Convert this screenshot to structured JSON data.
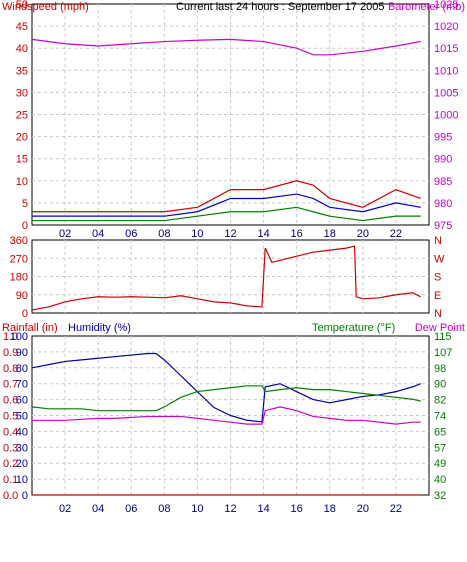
{
  "header": {
    "title": "Current last 24 hours : September 17 2005",
    "wind_label": "Windspeed (mph)",
    "baro_label": "Barometer (mb)"
  },
  "colors": {
    "wind": "#cc0000",
    "gust": "#0000cc",
    "green": "#008000",
    "baro": "#cc00cc",
    "dir": "#cc0000",
    "humidity": "#0000aa",
    "rain": "#cc0000",
    "temperature": "#008000",
    "dewpoint": "#cc00cc",
    "grid": "#c8c8c8"
  },
  "x_axis": {
    "ticks": [
      "02",
      "04",
      "06",
      "08",
      "10",
      "12",
      "14",
      "16",
      "18",
      "20",
      "22"
    ]
  },
  "chart_data": [
    {
      "type": "line",
      "id": "wind_baro",
      "title": "Current last 24 hours : September 17 2005",
      "ylabel_left": "Windspeed (mph)",
      "ylabel_right": "Barometer (mb)",
      "yticks_left": [
        "0",
        "5",
        "10",
        "15",
        "20",
        "25",
        "30",
        "35",
        "40",
        "45",
        "50"
      ],
      "yticks_right": [
        "975",
        "980",
        "985",
        "990",
        "995",
        "1000",
        "1005",
        "1010",
        "1015",
        "1020",
        "1025"
      ],
      "ylim_left": [
        0,
        50
      ],
      "ylim_right": [
        975,
        1025
      ],
      "x": [
        0,
        2,
        4,
        6,
        8,
        10,
        12,
        14,
        16,
        17,
        18,
        20,
        22,
        23.5
      ],
      "series": [
        {
          "name": "Barometer (mb)",
          "axis": "right",
          "values": [
            1017,
            1016,
            1015.5,
            1016,
            1016.5,
            1016.8,
            1017,
            1016.5,
            1015,
            1013.5,
            1013.5,
            1014.3,
            1015.5,
            1016.5
          ]
        },
        {
          "name": "Windspeed (mph)",
          "axis": "left",
          "values": [
            3,
            3,
            3,
            3,
            3,
            4,
            8,
            8,
            10,
            9,
            6,
            4,
            8,
            6
          ]
        },
        {
          "name": "",
          "axis": "left",
          "values": [
            2,
            2,
            2,
            2,
            2,
            3,
            6,
            6,
            7,
            6,
            4,
            3,
            5,
            4
          ]
        },
        {
          "name": "",
          "axis": "left",
          "values": [
            1,
            1,
            1,
            1,
            1,
            2,
            3,
            3,
            4,
            3,
            2,
            1,
            2,
            2
          ]
        }
      ]
    },
    {
      "type": "line",
      "id": "wind_direction",
      "yticks_left": [
        "0",
        "90",
        "180",
        "270",
        "360"
      ],
      "yticks_right": [
        "N",
        "E",
        "S",
        "W",
        "N"
      ],
      "ylim": [
        0,
        360
      ],
      "x": [
        0,
        1,
        2,
        3,
        4,
        5,
        6,
        7,
        8,
        9,
        10,
        11,
        12,
        13,
        13.9,
        14.1,
        14.5,
        15,
        16,
        17,
        18,
        19,
        19.5,
        19.6,
        20,
        21,
        22,
        23,
        23.5
      ],
      "series": [
        {
          "name": "",
          "values": [
            15,
            30,
            55,
            70,
            80,
            78,
            80,
            78,
            75,
            85,
            70,
            55,
            50,
            35,
            30,
            320,
            250,
            260,
            280,
            300,
            310,
            320,
            330,
            80,
            70,
            75,
            90,
            100,
            80
          ]
        }
      ]
    },
    {
      "type": "line",
      "id": "rain_humidity_temp",
      "ylabel_left": "Rainfall (in)",
      "ylabel_mid": "Humidity (%)",
      "ylabel_right": "Temperature (°F)",
      "ylabel_right2": "Dew Point",
      "yticks_left": [
        "0.0",
        "0.1",
        "0.2",
        "0.3",
        "0.4",
        "0.5",
        "0.6",
        "0.7",
        "0.8",
        "0.9",
        "1.0"
      ],
      "yticks_mid": [
        "0",
        "10",
        "20",
        "30",
        "40",
        "50",
        "60",
        "70",
        "80",
        "90",
        "100"
      ],
      "yticks_right": [
        "32",
        "40",
        "49",
        "57",
        "65",
        "74",
        "82",
        "90",
        "98",
        "107",
        "115"
      ],
      "ylim_left": [
        0,
        1
      ],
      "ylim_mid": [
        0,
        100
      ],
      "ylim_right": [
        32,
        115
      ],
      "x": [
        0,
        1,
        2,
        3,
        4,
        5,
        6,
        7,
        7.5,
        8,
        9,
        10,
        11,
        12,
        13,
        13.9,
        14.1,
        15,
        16,
        17,
        18,
        19,
        20,
        21,
        22,
        23,
        23.5
      ],
      "series": [
        {
          "name": "Rainfall (in)",
          "axis": "left",
          "values": [
            0,
            0,
            0,
            0,
            0,
            0,
            0,
            0,
            0,
            0,
            0,
            0,
            0,
            0,
            0,
            0,
            0,
            0,
            0,
            0,
            0,
            0,
            0,
            0,
            0,
            0,
            0
          ]
        },
        {
          "name": "Humidity (%)",
          "axis": "mid",
          "values": [
            80,
            82,
            84,
            85,
            86,
            87,
            88,
            89,
            89,
            85,
            75,
            65,
            55,
            50,
            47,
            46,
            68,
            70,
            65,
            60,
            58,
            60,
            62,
            63,
            65,
            68,
            70
          ]
        },
        {
          "name": "Temperature (°F)",
          "axis": "right",
          "values": [
            78,
            77,
            77,
            77,
            76,
            76,
            76,
            76,
            76,
            78,
            83,
            86,
            87,
            88,
            89,
            89,
            86,
            87,
            88,
            87,
            87,
            86,
            85,
            84,
            83,
            82,
            81
          ]
        },
        {
          "name": "Dew Point",
          "axis": "right",
          "values": [
            71,
            71,
            71,
            71.5,
            72,
            72,
            72.5,
            73,
            73,
            73,
            73,
            72,
            71,
            70,
            69,
            69,
            76,
            78,
            76,
            73,
            72,
            71,
            71,
            70,
            69,
            70,
            70
          ]
        }
      ]
    }
  ]
}
